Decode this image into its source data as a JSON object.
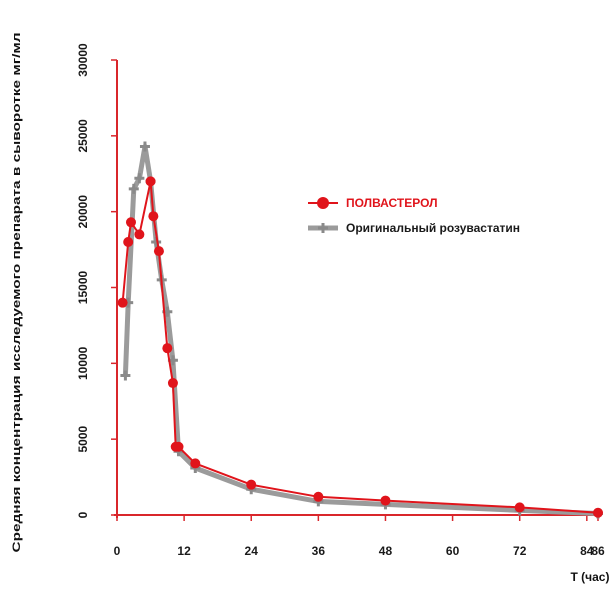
{
  "chart_data": {
    "type": "line",
    "title": "",
    "ylabel": "Средняя концентрация исследуемого препарата в сыворотке мг/мл",
    "xlabel": "T (час)",
    "xlim": [
      0,
      86
    ],
    "ylim": [
      0,
      30000
    ],
    "xticks": [
      0,
      12,
      24,
      36,
      48,
      60,
      72,
      84,
      86
    ],
    "yticks": [
      0,
      5000,
      10000,
      15000,
      20000,
      25000,
      30000
    ],
    "x_tick_labels": [
      "0",
      "12",
      "24",
      "36",
      "48",
      "60",
      "72",
      "84",
      "86"
    ],
    "y_tick_labels": [
      "0",
      "5000",
      "10000",
      "15000",
      "20000",
      "25000",
      "30000"
    ],
    "legend_position": "right",
    "series": [
      {
        "name": "ПОЛВАСТЕРОЛ",
        "color": "#e0141b",
        "marker": "circle",
        "x": [
          1,
          2,
          2.5,
          4,
          6,
          6.5,
          7.5,
          9,
          10,
          10.5,
          11,
          14,
          24,
          36,
          48,
          72,
          86
        ],
        "y": [
          14000,
          18000,
          19300,
          18500,
          22000,
          19700,
          17400,
          11000,
          8700,
          4500,
          4500,
          3400,
          2000,
          1200,
          950,
          500,
          150
        ]
      },
      {
        "name": "Оригинальный розувастатин",
        "color": "#9b9b9b",
        "marker": "plus",
        "x": [
          1.5,
          2,
          3,
          4,
          5,
          6,
          7,
          8,
          9,
          10,
          11,
          14,
          24,
          36,
          48,
          72,
          86
        ],
        "y": [
          9200,
          14000,
          21500,
          22200,
          24300,
          22000,
          18000,
          15500,
          13400,
          10200,
          4200,
          3100,
          1700,
          900,
          700,
          300,
          100
        ]
      }
    ]
  }
}
